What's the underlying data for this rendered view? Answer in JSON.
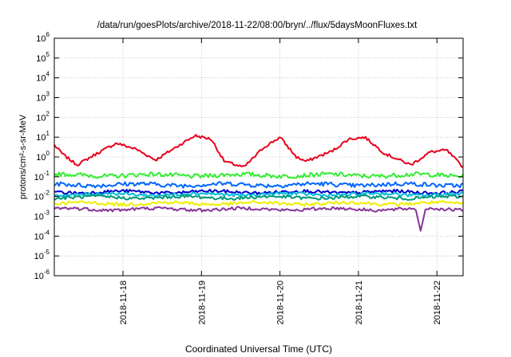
{
  "chart_data": {
    "type": "line",
    "title": "/data/run/goesPlots/archive/2018-11-22/08:00/bryn/../flux/5daysMoonFluxes.txt",
    "xlabel": "Coordinated Universal Time (UTC)",
    "ylabel": "protons/cm²-s-sr-MeV",
    "yscale": "log",
    "ylim": [
      1e-06,
      1000000.0
    ],
    "xlim": [
      2018.1117,
      2018.1122
    ],
    "x_start": "2018-11-17T03:00",
    "x_end": "2018-11-22T08:00",
    "x_ticks": [
      "2018-11-18",
      "2018-11-19",
      "2018-11-20",
      "2018-11-21",
      "2018-11-22"
    ],
    "y_ticks": [
      {
        "base": "10",
        "exp": "-6"
      },
      {
        "base": "10",
        "exp": "-5"
      },
      {
        "base": "10",
        "exp": "-4"
      },
      {
        "base": "10",
        "exp": "-3"
      },
      {
        "base": "10",
        "exp": "-2"
      },
      {
        "base": "10",
        "exp": "-1"
      },
      {
        "base": "10",
        "exp": "0"
      },
      {
        "base": "10",
        "exp": "1"
      },
      {
        "base": "10",
        "exp": "2"
      },
      {
        "base": "10",
        "exp": "3"
      },
      {
        "base": "10",
        "exp": "4"
      },
      {
        "base": "10",
        "exp": "5"
      },
      {
        "base": "10",
        "exp": "6"
      }
    ],
    "grid": true,
    "legend": "none",
    "series": [
      {
        "color": "#e8001c",
        "t": [
          "2018-11-17T03:00",
          "2018-11-17T06:00",
          "2018-11-17T10:00",
          "2018-11-17T16:00",
          "2018-11-17T22:00",
          "2018-11-18T04:00",
          "2018-11-18T10:00",
          "2018-11-18T16:00",
          "2018-11-18T22:00",
          "2018-11-19T03:00",
          "2018-11-19T07:00",
          "2018-11-19T13:00",
          "2018-11-19T19:00",
          "2018-11-20T00:00",
          "2018-11-20T05:00",
          "2018-11-20T08:00",
          "2018-11-20T16:00",
          "2018-11-20T21:00",
          "2018-11-21T02:00",
          "2018-11-21T08:00",
          "2018-11-21T16:00",
          "2018-11-21T22:00",
          "2018-11-22T03:00",
          "2018-11-22T08:00"
        ],
        "y": [
          4,
          1.2,
          0.4,
          1.5,
          5,
          2.5,
          0.7,
          3,
          12,
          8,
          0.6,
          0.3,
          3,
          10,
          1,
          0.6,
          2,
          8,
          10,
          1.5,
          0.4,
          1.8,
          2.2,
          0.3
        ]
      },
      {
        "color": "#33ee33",
        "level": 0.12
      },
      {
        "color": "#0066ff",
        "level": 0.04
      },
      {
        "color": "#0000cc",
        "level": 0.017
      },
      {
        "color": "#00bbdd",
        "level": 0.013
      },
      {
        "color": "#009977",
        "level": 0.009
      },
      {
        "color": "#eeee00",
        "level": 0.0045
      },
      {
        "color": "#883399",
        "level": 0.0023,
        "min": {
          "t": "2018-11-21T19:00",
          "y": 0.00018
        }
      }
    ]
  }
}
